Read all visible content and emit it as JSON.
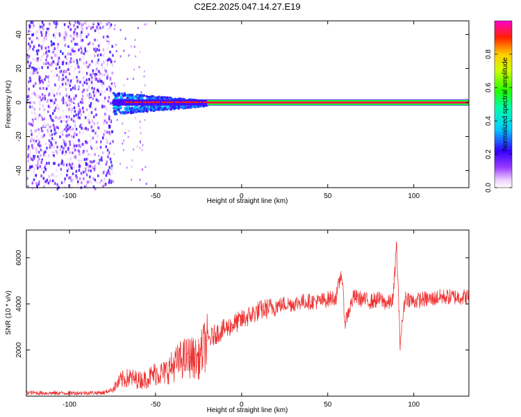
{
  "title": "C2E2.2025.047.14.27.E19",
  "colorbar": {
    "label": "Normalized spectral amplitude",
    "ticks": [
      "0.0",
      "0.2",
      "0.4",
      "0.6",
      "0.8"
    ],
    "tick_values": [
      0.0,
      0.2,
      0.4,
      0.6,
      0.8
    ],
    "range": [
      0,
      1
    ]
  },
  "chart_data": [
    {
      "type": "heatmap",
      "xlabel": "Height of straight line (km)",
      "ylabel": "Frequency (Hz)",
      "xlim": [
        -125,
        132
      ],
      "ylim": [
        -50,
        48
      ],
      "xticks": [
        -100,
        -50,
        0,
        50,
        100
      ],
      "xtick_labels": [
        "-100",
        "-50",
        "0",
        "50",
        "100"
      ],
      "yticks": [
        -40,
        -20,
        0,
        20,
        40
      ],
      "ytick_labels": [
        "-40",
        "-20",
        "0",
        "20",
        "40"
      ],
      "regions": [
        {
          "x_range": [
            -125,
            -75
          ],
          "f_range": [
            -50,
            48
          ],
          "amplitude": [
            0.0,
            0.25
          ],
          "kind": "broadband noise"
        },
        {
          "x_range": [
            -75,
            -20
          ],
          "f_range": [
            -6,
            4
          ],
          "amplitude": [
            0.2,
            0.5
          ],
          "kind": "spread tone"
        },
        {
          "x_range": [
            -20,
            132
          ],
          "f_range": [
            -1.5,
            1.5
          ],
          "amplitude": [
            0.85,
            1.0
          ],
          "kind": "narrow tone at 0 Hz"
        }
      ]
    },
    {
      "type": "line",
      "xlabel": "Height of straight line (km)",
      "ylabel": "SNR (10 * v/v)",
      "xlim": [
        -125,
        132
      ],
      "ylim": [
        0,
        7200
      ],
      "xticks": [
        -100,
        -50,
        0,
        50,
        100
      ],
      "xtick_labels": [
        "-100",
        "-50",
        "0",
        "50",
        "100"
      ],
      "yticks": [
        2000,
        4000,
        6000
      ],
      "ytick_labels": [
        "2000",
        "4000",
        "6000"
      ],
      "series": [
        {
          "color": "#ee3333",
          "x": [
            -125,
            -110,
            -95,
            -80,
            -75,
            -70,
            -65,
            -60,
            -55,
            -50,
            -45,
            -40,
            -35,
            -30,
            -25,
            -20,
            -15,
            -10,
            -5,
            0,
            5,
            10,
            15,
            20,
            25,
            30,
            35,
            40,
            45,
            50,
            55,
            58,
            60,
            65,
            70,
            75,
            80,
            85,
            88,
            90,
            92,
            95,
            100,
            105,
            110,
            115,
            120,
            125,
            132
          ],
          "y": [
            150,
            130,
            140,
            150,
            300,
            700,
            800,
            700,
            750,
            1000,
            1000,
            1300,
            1600,
            1700,
            1600,
            2400,
            2700,
            2900,
            3100,
            3300,
            3500,
            3700,
            3800,
            3900,
            4000,
            4000,
            4100,
            4100,
            4100,
            4200,
            4300,
            5400,
            3200,
            4300,
            4200,
            4100,
            4200,
            4000,
            4200,
            6600,
            2300,
            4300,
            4100,
            4200,
            4200,
            4300,
            4300,
            4300,
            4300
          ]
        }
      ]
    }
  ]
}
